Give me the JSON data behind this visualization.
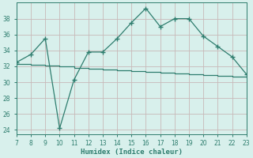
{
  "xlabel": "Humidex (Indice chaleur)",
  "x": [
    7,
    8,
    9,
    10,
    11,
    12,
    13,
    14,
    15,
    16,
    17,
    18,
    19,
    20,
    21,
    22,
    23
  ],
  "y_upper": [
    32.5,
    33.5,
    35.5,
    24.2,
    30.3,
    33.8,
    33.8,
    35.5,
    37.5,
    39.3,
    37.0,
    38.0,
    38.0,
    35.8,
    34.5,
    33.2,
    31.0
  ],
  "y_lower": [
    32.3,
    32.2,
    32.1,
    32.0,
    31.8,
    31.7,
    31.6,
    31.5,
    31.4,
    31.3,
    31.2,
    31.1,
    31.0,
    30.9,
    30.8,
    30.7,
    30.6
  ],
  "line_color": "#2e7d6e",
  "bg_color": "#d8f0ec",
  "grid_color_v": "#c8b8b8",
  "grid_color_h": "#c8b8b8",
  "tick_color": "#2e7d6e",
  "ylim": [
    23.5,
    40.0
  ],
  "yticks": [
    24,
    26,
    28,
    30,
    32,
    34,
    36,
    38
  ],
  "xlim": [
    7,
    23
  ],
  "xticks": [
    7,
    8,
    9,
    10,
    11,
    12,
    13,
    14,
    15,
    16,
    17,
    18,
    19,
    20,
    21,
    22,
    23
  ]
}
